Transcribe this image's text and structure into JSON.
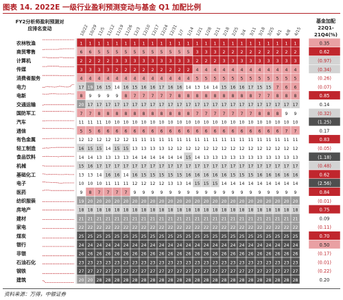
{
  "title": "图表 14. 2022E 一级行业盈利预测变动与基金 Q1 加配比例",
  "source": "资料来源：万得，中银证券",
  "left_header": [
    "FY2分析师盈利预测对",
    "应排名变动"
  ],
  "right_header": [
    "基金加配",
    "22Q1-",
    "21Q4(%)"
  ],
  "colors": {
    "red": "#c0262d",
    "pink": "#e9a0a3",
    "dark": "#4f4f4f",
    "mid": "#9a9a9a",
    "light": "#d3d3d3",
    "white": "#ffffff"
  },
  "chart_data": {
    "type": "heatmap",
    "dates": [
      "10/22",
      "10/29",
      "11/5",
      "11/12",
      "11/19",
      "11/26",
      "12/3",
      "12/10",
      "12/17",
      "12/24",
      "12/31",
      "1/7",
      "1/14",
      "1/21",
      "1/28",
      "2/11",
      "2/18",
      "2/25",
      "3/4",
      "3/11",
      "3/18",
      "3/25",
      "4/1",
      "4/8",
      "4/15"
    ],
    "industries": [
      "农林牧渔",
      "商贸零售",
      "计算机",
      "传媒",
      "消费者服务",
      "电力",
      "电新",
      "交通运输",
      "国防军工",
      "汽车",
      "通信",
      "有色金属",
      "轻工制造",
      "食品饮料",
      "机械",
      "基础化工",
      "电子",
      "医药",
      "纺织服装",
      "房地产",
      "建材",
      "家电",
      "煤炭",
      "银行",
      "非银",
      "石油石化",
      "钢铁",
      "建筑"
    ],
    "fund_change": [
      "0.35",
      "0.62",
      "(0.97)",
      "(0.34)",
      "(0.26)",
      "(0.07)",
      "0.85",
      "0.14",
      "(0.32)",
      "(1.25)",
      "0.17",
      "0.83",
      "(0.05)",
      "(1.18)",
      "(0.48)",
      "0.62",
      "(2.56)",
      "0.84",
      "(0.01)",
      "0.75",
      "0.09",
      "(0.11)",
      "0.70",
      "0.50",
      "(0.17)",
      "(0.01)",
      "(0.22)",
      "0.20"
    ],
    "series": [
      {
        "name": "农林牧渔",
        "values": [
          1,
          1,
          1,
          1,
          1,
          1,
          1,
          1,
          1,
          1,
          1,
          1,
          1,
          1,
          1,
          1,
          1,
          1,
          1,
          1,
          1,
          1,
          1,
          1,
          1
        ]
      },
      {
        "name": "商贸零售",
        "values": [
          6,
          6,
          5,
          5,
          5,
          5,
          5,
          5,
          5,
          5,
          5,
          5,
          5,
          3,
          3,
          3,
          2,
          2,
          2,
          2,
          2,
          2,
          2,
          2,
          2
        ]
      },
      {
        "name": "计算机",
        "values": [
          2,
          2,
          2,
          2,
          3,
          3,
          3,
          3,
          3,
          3,
          3,
          3,
          3,
          2,
          2,
          2,
          3,
          3,
          3,
          3,
          3,
          3,
          3,
          3,
          3
        ]
      },
      {
        "name": "传媒",
        "values": [
          3,
          3,
          3,
          3,
          2,
          2,
          2,
          2,
          2,
          2,
          2,
          2,
          2,
          4,
          4,
          4,
          4,
          4,
          4,
          4,
          4,
          4,
          4,
          4,
          4
        ]
      },
      {
        "name": "消费者服务",
        "values": [
          4,
          4,
          4,
          4,
          4,
          4,
          4,
          4,
          4,
          4,
          4,
          4,
          4,
          5,
          5,
          5,
          5,
          5,
          5,
          5,
          5,
          5,
          5,
          5,
          5
        ]
      },
      {
        "name": "电力",
        "values": [
          17,
          19,
          16,
          15,
          14,
          16,
          15,
          16,
          16,
          17,
          16,
          16,
          14,
          13,
          14,
          14,
          15,
          16,
          16,
          17,
          15,
          15,
          7,
          6,
          6
        ]
      },
      {
        "name": "电新",
        "values": [
          8,
          9,
          9,
          9,
          9,
          8,
          7,
          7,
          7,
          7,
          7,
          8,
          8,
          8,
          8,
          8,
          8,
          8,
          8,
          8,
          7,
          7,
          8,
          8,
          8
        ]
      },
      {
        "name": "交通运输",
        "values": [
          20,
          17,
          17,
          17,
          17,
          17,
          17,
          17,
          17,
          17,
          17,
          17,
          17,
          17,
          17,
          17,
          17,
          17,
          17,
          17,
          17,
          17,
          17,
          17,
          17
        ]
      },
      {
        "name": "国防军工",
        "values": [
          7,
          7,
          8,
          8,
          8,
          8,
          8,
          8,
          8,
          8,
          8,
          8,
          8,
          7,
          7,
          7,
          7,
          7,
          7,
          7,
          8,
          8,
          8,
          9,
          9
        ]
      },
      {
        "name": "汽车",
        "values": [
          11,
          11,
          11,
          10,
          10,
          10,
          10,
          10,
          10,
          10,
          10,
          10,
          10,
          10,
          10,
          10,
          10,
          10,
          10,
          10,
          10,
          10,
          10,
          10,
          10
        ]
      },
      {
        "name": "通信",
        "values": [
          5,
          5,
          6,
          6,
          6,
          6,
          6,
          6,
          6,
          6,
          6,
          6,
          6,
          6,
          6,
          6,
          6,
          6,
          6,
          6,
          6,
          6,
          6,
          7,
          7
        ]
      },
      {
        "name": "有色金属",
        "values": [
          12,
          12,
          12,
          12,
          12,
          12,
          11,
          11,
          11,
          11,
          11,
          11,
          11,
          11,
          11,
          11,
          11,
          11,
          11,
          11,
          11,
          11,
          11,
          11,
          11
        ]
      },
      {
        "name": "轻工制造",
        "values": [
          16,
          15,
          15,
          14,
          15,
          15,
          13,
          13,
          13,
          13,
          12,
          12,
          12,
          12,
          12,
          12,
          12,
          12,
          12,
          12,
          12,
          12,
          12,
          12,
          12
        ]
      },
      {
        "name": "食品饮料",
        "values": [
          14,
          14,
          13,
          13,
          13,
          13,
          14,
          14,
          14,
          14,
          14,
          14,
          15,
          14,
          13,
          13,
          13,
          13,
          13,
          13,
          13,
          13,
          13,
          13,
          13
        ]
      },
      {
        "name": "机械",
        "values": [
          15,
          16,
          17,
          17,
          17,
          17,
          17,
          17,
          17,
          17,
          17,
          17,
          17,
          17,
          17,
          17,
          17,
          17,
          17,
          17,
          17,
          17,
          17,
          17,
          17
        ]
      },
      {
        "name": "基础化工",
        "values": [
          13,
          13,
          14,
          16,
          16,
          14,
          16,
          15,
          15,
          15,
          15,
          15,
          16,
          16,
          16,
          16,
          16,
          15,
          15,
          15,
          16,
          16,
          16,
          16,
          16
        ]
      },
      {
        "name": "电子",
        "values": [
          10,
          10,
          10,
          11,
          11,
          11,
          12,
          12,
          12,
          12,
          13,
          13,
          14,
          15,
          15,
          15,
          14,
          14,
          14,
          14,
          14,
          14,
          14,
          14,
          14
        ]
      },
      {
        "name": "医药",
        "values": [
          9,
          8,
          7,
          7,
          7,
          7,
          9,
          9,
          9,
          9,
          9,
          9,
          9,
          9,
          9,
          9,
          9,
          9,
          9,
          9,
          9,
          9,
          9,
          9,
          9
        ]
      },
      {
        "name": "纺织服装",
        "values": [
          19,
          20,
          20,
          20,
          20,
          20,
          20,
          20,
          20,
          20,
          20,
          20,
          20,
          20,
          20,
          20,
          20,
          20,
          20,
          20,
          20,
          20,
          20,
          20,
          20
        ]
      },
      {
        "name": "房地产",
        "values": [
          18,
          18,
          18,
          18,
          18,
          18,
          18,
          18,
          18,
          18,
          18,
          18,
          18,
          18,
          18,
          18,
          18,
          18,
          18,
          18,
          18,
          18,
          18,
          18,
          18
        ]
      },
      {
        "name": "建材",
        "values": [
          21,
          21,
          21,
          21,
          21,
          21,
          21,
          21,
          21,
          21,
          21,
          21,
          21,
          21,
          21,
          21,
          21,
          21,
          21,
          21,
          21,
          21,
          21,
          21,
          21
        ]
      },
      {
        "name": "家电",
        "values": [
          22,
          22,
          22,
          22,
          22,
          22,
          22,
          22,
          22,
          22,
          22,
          22,
          22,
          22,
          22,
          22,
          22,
          22,
          22,
          22,
          22,
          22,
          22,
          22,
          22
        ]
      },
      {
        "name": "煤炭",
        "values": [
          25,
          25,
          25,
          25,
          25,
          25,
          25,
          25,
          25,
          25,
          25,
          25,
          25,
          25,
          25,
          25,
          25,
          25,
          25,
          25,
          25,
          25,
          25,
          25,
          25
        ]
      },
      {
        "name": "银行",
        "values": [
          24,
          24,
          24,
          24,
          24,
          24,
          24,
          24,
          24,
          24,
          24,
          24,
          24,
          24,
          24,
          24,
          24,
          24,
          24,
          24,
          24,
          24,
          24,
          24,
          24
        ]
      },
      {
        "name": "非银",
        "values": [
          26,
          26,
          26,
          26,
          26,
          26,
          26,
          26,
          26,
          26,
          26,
          26,
          26,
          26,
          26,
          26,
          26,
          26,
          26,
          26,
          26,
          26,
          26,
          26,
          26
        ]
      },
      {
        "name": "石油石化",
        "values": [
          23,
          23,
          23,
          23,
          23,
          23,
          23,
          23,
          23,
          23,
          23,
          23,
          23,
          23,
          23,
          23,
          23,
          23,
          23,
          23,
          23,
          23,
          23,
          23,
          23
        ]
      },
      {
        "name": "钢铁",
        "values": [
          27,
          27,
          27,
          27,
          27,
          27,
          27,
          27,
          27,
          27,
          27,
          27,
          27,
          27,
          27,
          27,
          27,
          27,
          27,
          27,
          27,
          27,
          27,
          27,
          27
        ]
      },
      {
        "name": "建筑",
        "values": [
          20,
          20,
          28,
          28,
          28,
          28,
          28,
          28,
          28,
          28,
          28,
          28,
          28,
          28,
          28,
          28,
          28,
          28,
          28,
          28,
          28,
          28,
          28,
          28,
          28
        ]
      }
    ]
  }
}
